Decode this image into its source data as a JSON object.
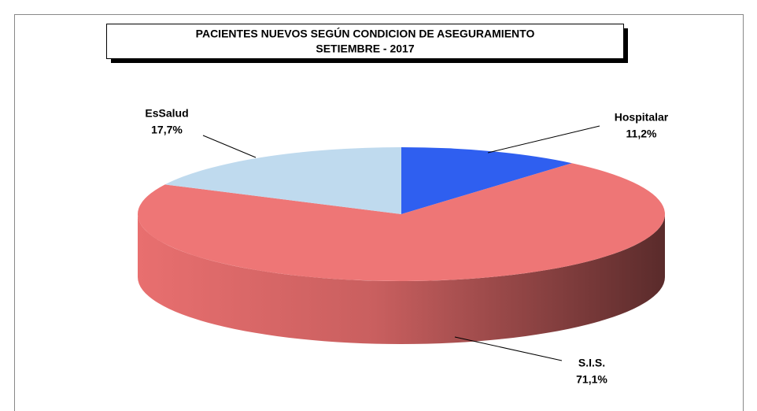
{
  "chart_data": {
    "type": "pie3d",
    "title": "PACIENTES NUEVOS SEGÚN CONDICION DE ASEGURAMIENTO",
    "subtitle": "SETIEMBRE  - 2017",
    "categories": [
      "Hospitalar",
      "S.I.S.",
      "EsSalud"
    ],
    "values": [
      11.2,
      71.1,
      17.7
    ],
    "value_labels": [
      "11,2%",
      "71,1%",
      "17,7%"
    ],
    "colors": [
      "#2f5ff0",
      "#ee7676",
      "#bfdaee"
    ]
  }
}
